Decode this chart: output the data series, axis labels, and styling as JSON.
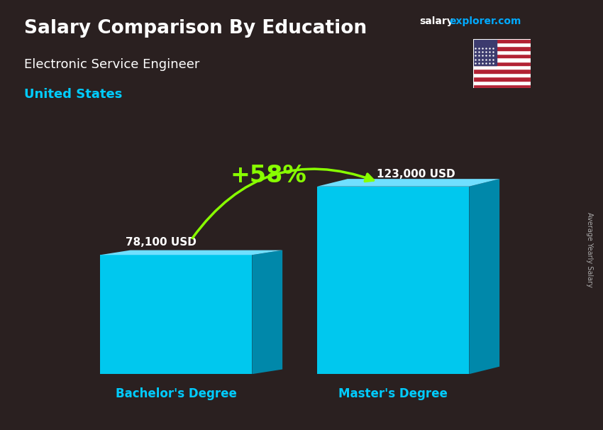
{
  "title1": "Salary Comparison By Education",
  "title2": "Electronic Service Engineer",
  "title3": "United States",
  "site_salary": "salary",
  "site_explorer": "explorer.com",
  "categories": [
    "Bachelor's Degree",
    "Master's Degree"
  ],
  "values": [
    78100,
    123000
  ],
  "bar_labels": [
    "78,100 USD",
    "123,000 USD"
  ],
  "pct_label": "+58%",
  "bar_color_face": "#00C8EE",
  "bar_color_side": "#0088AA",
  "bar_color_top": "#70DFFF",
  "background_color": "#2a2020",
  "title_color": "#ffffff",
  "subtitle_color": "#ffffff",
  "location_color": "#00CCFF",
  "label_color": "#ffffff",
  "xlabel_color": "#00CCFF",
  "pct_color": "#88FF00",
  "arrow_color": "#88FF00",
  "ylabel_text": "Average Yearly Salary",
  "ylim": [
    0,
    155000
  ],
  "bar_width": 0.28,
  "bar_positions": [
    0.28,
    0.68
  ]
}
